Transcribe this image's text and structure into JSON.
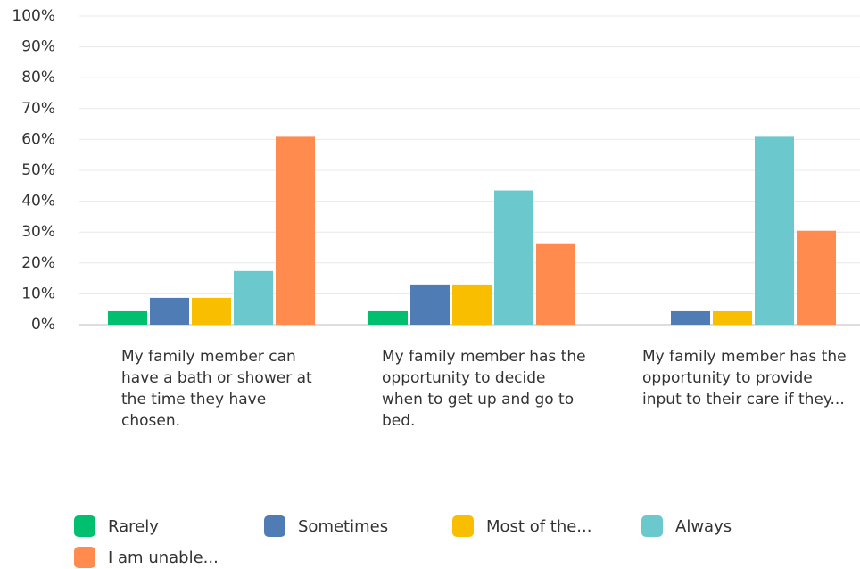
{
  "chart_data": {
    "type": "bar",
    "categories": [
      "My family member can have a bath or shower at the time they have chosen.",
      "My family member has the opportunity to decide when to get up and go to bed.",
      "My family member has the opportunity to provide input to their care if they..."
    ],
    "series": [
      {
        "name": "Rarely",
        "color": "#00bf6f",
        "values": [
          4.35,
          4.35,
          0
        ]
      },
      {
        "name": "Sometimes",
        "color": "#507cb6",
        "values": [
          8.7,
          13.04,
          4.35
        ]
      },
      {
        "name": "Most of the...",
        "color": "#f9be00",
        "values": [
          8.7,
          13.04,
          4.35
        ]
      },
      {
        "name": "Always",
        "color": "#6bc8cd",
        "values": [
          17.39,
          43.48,
          60.87
        ]
      },
      {
        "name": "I am unable...",
        "color": "#ff8b4f",
        "values": [
          60.87,
          26.09,
          30.43
        ]
      }
    ],
    "ylim": [
      0,
      100
    ],
    "yticks": [
      {
        "value": 0,
        "label": "0%"
      },
      {
        "value": 10,
        "label": "10%"
      },
      {
        "value": 20,
        "label": "20%"
      },
      {
        "value": 30,
        "label": "30%"
      },
      {
        "value": 40,
        "label": "40%"
      },
      {
        "value": 50,
        "label": "50%"
      },
      {
        "value": 60,
        "label": "60%"
      },
      {
        "value": 70,
        "label": "70%"
      },
      {
        "value": 80,
        "label": "80%"
      },
      {
        "value": 90,
        "label": "90%"
      },
      {
        "value": 100,
        "label": "100%"
      }
    ],
    "grid": true
  }
}
